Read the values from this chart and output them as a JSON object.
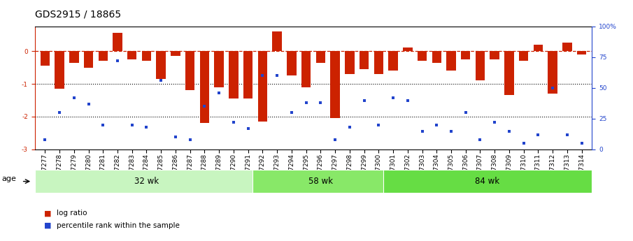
{
  "title": "GDS2915 / 18865",
  "samples": [
    "GSM97277",
    "GSM97278",
    "GSM97279",
    "GSM97280",
    "GSM97281",
    "GSM97282",
    "GSM97283",
    "GSM97284",
    "GSM97285",
    "GSM97286",
    "GSM97287",
    "GSM97288",
    "GSM97289",
    "GSM97290",
    "GSM97291",
    "GSM97292",
    "GSM97293",
    "GSM97294",
    "GSM97295",
    "GSM97296",
    "GSM97297",
    "GSM97298",
    "GSM97299",
    "GSM97300",
    "GSM97301",
    "GSM97302",
    "GSM97303",
    "GSM97304",
    "GSM97305",
    "GSM97306",
    "GSM97307",
    "GSM97308",
    "GSM97309",
    "GSM97310",
    "GSM97311",
    "GSM97312",
    "GSM97313",
    "GSM97314"
  ],
  "log_ratio": [
    -0.45,
    -1.15,
    -0.35,
    -0.5,
    -0.3,
    0.55,
    -0.25,
    -0.3,
    -0.85,
    -0.15,
    -1.2,
    -2.2,
    -1.1,
    -1.45,
    -1.45,
    -2.15,
    0.6,
    -0.75,
    -1.1,
    -0.35,
    -2.05,
    -0.7,
    -0.55,
    -0.7,
    -0.6,
    0.12,
    -0.3,
    -0.35,
    -0.6,
    -0.25,
    -0.9,
    -0.25,
    -1.35,
    -0.3,
    0.2,
    -1.3,
    0.25,
    -0.1
  ],
  "percentile": [
    8,
    30,
    42,
    37,
    20,
    72,
    20,
    18,
    56,
    10,
    8,
    35,
    46,
    22,
    17,
    60,
    60,
    30,
    38,
    38,
    8,
    18,
    40,
    20,
    42,
    40,
    15,
    20,
    15,
    30,
    8,
    22,
    15,
    5,
    12,
    50,
    12,
    5
  ],
  "groups": [
    {
      "label": "32 wk",
      "start": 0,
      "end": 15,
      "color": "#c8f5c0"
    },
    {
      "label": "58 wk",
      "start": 15,
      "end": 24,
      "color": "#88e868"
    },
    {
      "label": "84 wk",
      "start": 24,
      "end": 38,
      "color": "#66dd44"
    }
  ],
  "bar_color": "#cc2200",
  "dot_color": "#2244cc",
  "bg_color": "#ffffff",
  "ylim_left": [
    -3.0,
    0.75
  ],
  "ylim_right": [
    0,
    100
  ],
  "title_fontsize": 10,
  "tick_fontsize": 6.5,
  "label_fontsize": 8,
  "group_label_fontsize": 8.5,
  "legend_label_log": "log ratio",
  "legend_label_pct": "percentile rank within the sample",
  "age_label": "age"
}
